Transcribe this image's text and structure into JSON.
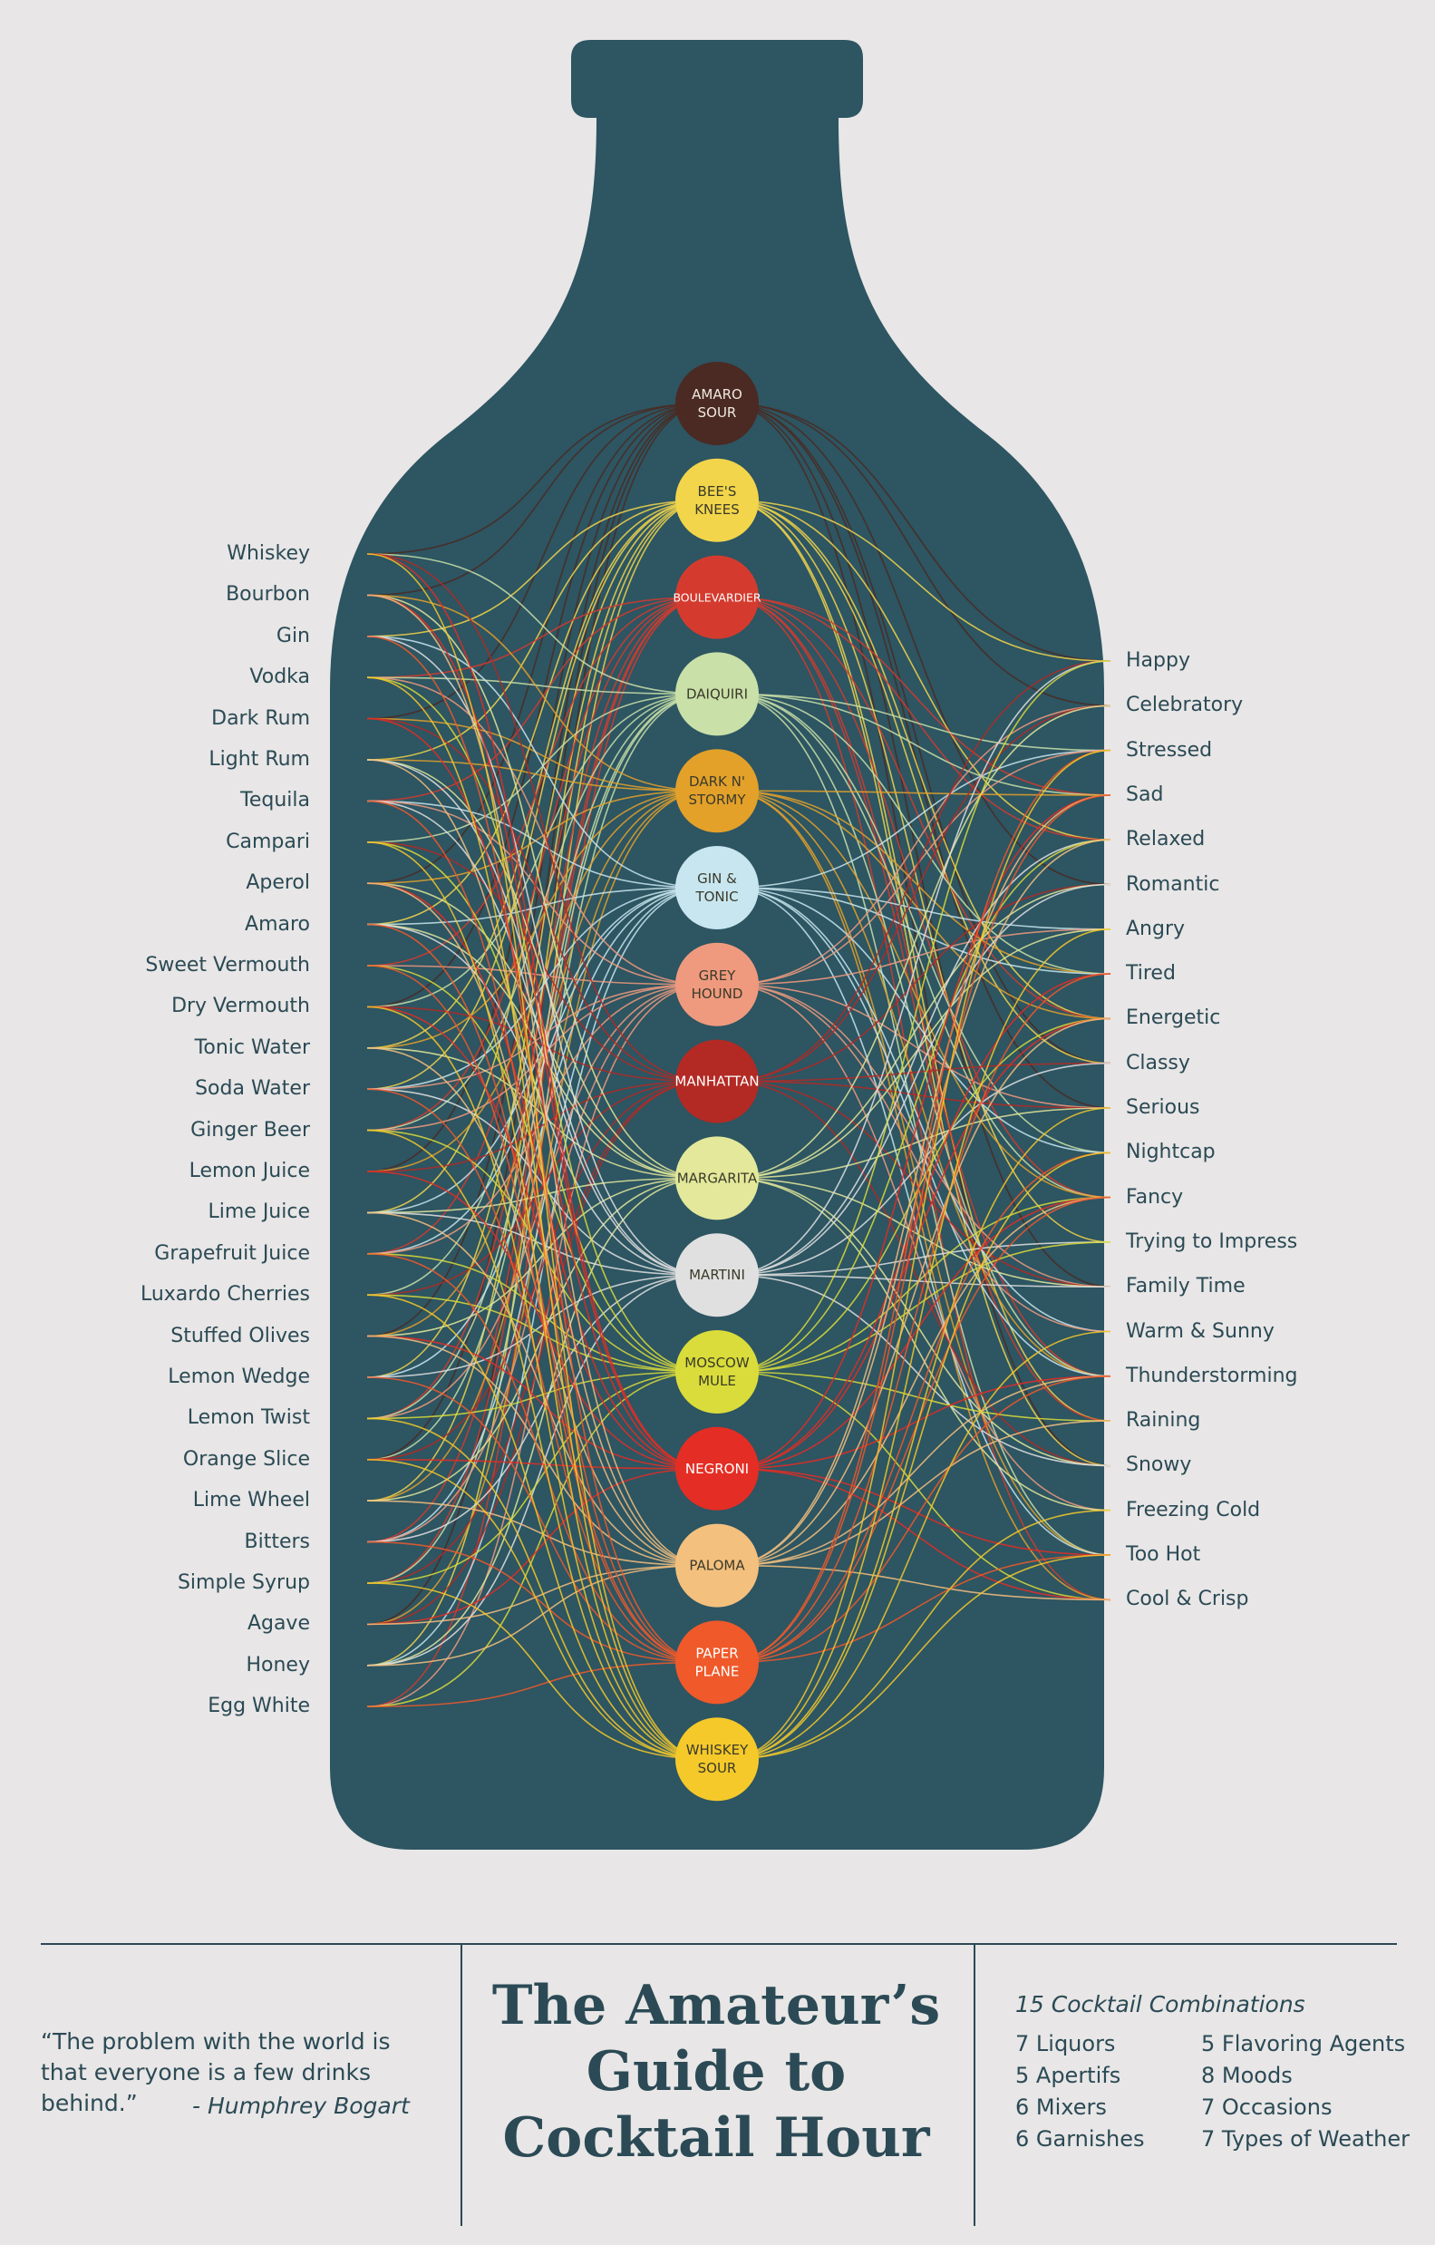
{
  "colors": {
    "background": "#e8e6e6",
    "bottle": "#2d5562",
    "text": "#2b4a55"
  },
  "ingredients": [
    "Whiskey",
    "Bourbon",
    "Gin",
    "Vodka",
    "Dark Rum",
    "Light Rum",
    "Tequila",
    "Campari",
    "Aperol",
    "Amaro",
    "Sweet Vermouth",
    "Dry Vermouth",
    "Tonic Water",
    "Soda Water",
    "Ginger Beer",
    "Lemon Juice",
    "Lime Juice",
    "Grapefruit Juice",
    "Luxardo Cherries",
    "Stuffed Olives",
    "Lemon Wedge",
    "Lemon Twist",
    "Orange Slice",
    "Lime Wheel",
    "Bitters",
    "Simple Syrup",
    "Agave",
    "Honey",
    "Egg White"
  ],
  "moods": [
    "Happy",
    "Celebratory",
    "Stressed",
    "Sad",
    "Relaxed",
    "Romantic",
    "Angry",
    "Tired",
    "Energetic",
    "Classy",
    "Serious",
    "Nightcap",
    "Fancy",
    "Trying to Impress",
    "Family Time",
    "Warm & Sunny",
    "Thunderstorming",
    "Raining",
    "Snowy",
    "Freezing Cold",
    "Too Hot",
    "Cool & Crisp"
  ],
  "cocktails": [
    {
      "lines": [
        "AMARO",
        "SOUR"
      ],
      "color": "#4a2a22",
      "text_color": "#f0e8e0"
    },
    {
      "lines": [
        "BEE'S",
        "KNEES"
      ],
      "color": "#f2d54b",
      "text_color": "#3a3a2a"
    },
    {
      "lines": [
        "BOULEVARDIER"
      ],
      "color": "#d43b2e",
      "text_color": "#ffffff"
    },
    {
      "lines": [
        "DAIQUIRI"
      ],
      "color": "#c9e0a8",
      "text_color": "#3a3a2a"
    },
    {
      "lines": [
        "DARK N'",
        "STORMY"
      ],
      "color": "#e3a12a",
      "text_color": "#3a3a2a"
    },
    {
      "lines": [
        "GIN &",
        "TONIC"
      ],
      "color": "#c8e6ef",
      "text_color": "#3a3a2a"
    },
    {
      "lines": [
        "GREY",
        "HOUND"
      ],
      "color": "#ef9a7e",
      "text_color": "#3a3a2a"
    },
    {
      "lines": [
        "MANHATTAN"
      ],
      "color": "#b32a24",
      "text_color": "#ffffff"
    },
    {
      "lines": [
        "MARGARITA"
      ],
      "color": "#e3e89a",
      "text_color": "#3a3a2a"
    },
    {
      "lines": [
        "MARTINI"
      ],
      "color": "#e0e0e0",
      "text_color": "#3a3a2a"
    },
    {
      "lines": [
        "MOSCOW",
        "MULE"
      ],
      "color": "#d9dc3a",
      "text_color": "#3a3a2a"
    },
    {
      "lines": [
        "NEGRONI"
      ],
      "color": "#e42d24",
      "text_color": "#ffffff"
    },
    {
      "lines": [
        "PALOMA"
      ],
      "color": "#f4c07e",
      "text_color": "#3a3a2a"
    },
    {
      "lines": [
        "PAPER",
        "PLANE"
      ],
      "color": "#f0592a",
      "text_color": "#ffffff"
    },
    {
      "lines": [
        "WHISKEY",
        "SOUR"
      ],
      "color": "#f5c92a",
      "text_color": "#3a3a2a"
    }
  ],
  "footer": {
    "quote": "“The problem with the world is that everyone is a few drinks behind.”",
    "quote_author": "- Humphrey Bogart",
    "title_lines": [
      "The Amateur’s",
      "Guide to",
      "Cocktail Hour"
    ],
    "stats_heading": "15 Cocktail Combinations",
    "stats_left": [
      "7 Liquors",
      "5 Apertifs",
      "6 Mixers",
      "6 Garnishes"
    ],
    "stats_right": [
      "5 Flavoring Agents",
      "8 Moods",
      "7 Occasions",
      "7 Types of Weather"
    ]
  }
}
